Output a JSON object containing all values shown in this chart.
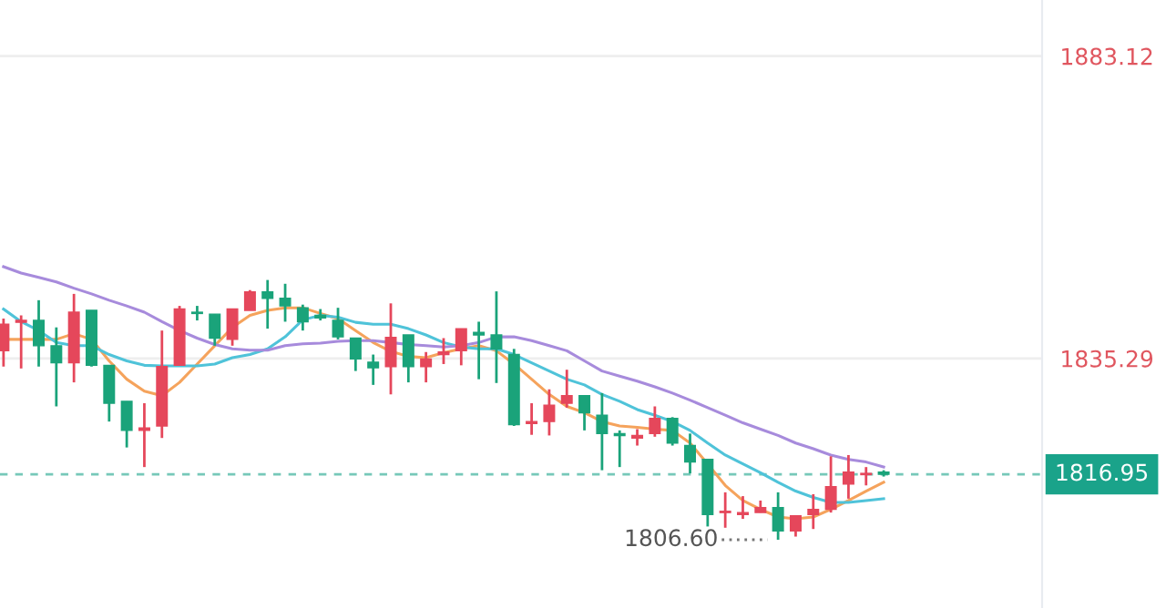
{
  "chart_data": {
    "type": "candlestick",
    "categories": [
      null,
      null,
      null,
      null,
      null,
      null,
      null,
      null,
      null,
      null,
      null,
      null,
      null,
      null,
      null,
      null,
      null,
      null,
      null,
      null,
      null,
      null,
      null,
      null,
      null,
      null,
      null,
      null,
      null,
      null,
      null,
      null,
      null,
      null,
      null,
      null,
      null,
      null,
      null,
      null,
      null,
      null,
      null,
      null,
      null,
      null,
      null,
      null,
      null,
      null,
      null
    ],
    "ohlc": [
      [
        1836.5,
        1841.6,
        1834.0,
        1840.7
      ],
      [
        1841.0,
        1842.1,
        1833.7,
        1841.3
      ],
      [
        1841.3,
        1844.5,
        1834.0,
        1837.3
      ],
      [
        1837.3,
        1840.2,
        1827.7,
        1834.6
      ],
      [
        1834.6,
        1845.5,
        1831.5,
        1842.6
      ],
      [
        1842.9,
        1842.9,
        1834.0,
        1834.2
      ],
      [
        1834.2,
        1834.2,
        1825.3,
        1828.2
      ],
      [
        1828.5,
        1828.5,
        1821.2,
        1823.9
      ],
      [
        1823.9,
        1828.2,
        1818.1,
        1824.3
      ],
      [
        1824.6,
        1839.7,
        1822.7,
        1834.0
      ],
      [
        1834.2,
        1843.6,
        1834.2,
        1843.1
      ],
      [
        1842.6,
        1843.6,
        1841.3,
        1842.4
      ],
      [
        1842.3,
        1842.3,
        1837.3,
        1838.5
      ],
      [
        1838.3,
        1843.1,
        1837.3,
        1843.1
      ],
      [
        1842.9,
        1846.1,
        1842.9,
        1845.8
      ],
      [
        1845.8,
        1847.7,
        1840.0,
        1844.8
      ],
      [
        1844.8,
        1847.1,
        1841.1,
        1843.6
      ],
      [
        1843.3,
        1843.8,
        1839.7,
        1841.1
      ],
      [
        1842.1,
        1843.1,
        1841.3,
        1841.7
      ],
      [
        1841.3,
        1843.3,
        1838.3,
        1838.7
      ],
      [
        1838.5,
        1838.5,
        1833.3,
        1835.2
      ],
      [
        1834.7,
        1835.9,
        1831.1,
        1833.8
      ],
      [
        1834.0,
        1844.0,
        1829.6,
        1838.6
      ],
      [
        1839.0,
        1839.0,
        1831.5,
        1834.0
      ],
      [
        1834.0,
        1836.3,
        1831.5,
        1835.2
      ],
      [
        1835.9,
        1838.5,
        1834.4,
        1836.3
      ],
      [
        1836.5,
        1840.0,
        1834.2,
        1840.0
      ],
      [
        1839.4,
        1841.1,
        1832.0,
        1839.0
      ],
      [
        1839.0,
        1845.9,
        1831.4,
        1836.8
      ],
      [
        1835.9,
        1836.8,
        1824.6,
        1824.8
      ],
      [
        1825.0,
        1828.2,
        1823.2,
        1825.3
      ],
      [
        1825.3,
        1830.4,
        1823.1,
        1827.9
      ],
      [
        1828.2,
        1833.5,
        1827.5,
        1829.4
      ],
      [
        1829.4,
        1829.4,
        1823.9,
        1826.7
      ],
      [
        1826.3,
        1829.8,
        1817.6,
        1823.4
      ],
      [
        1823.4,
        1823.9,
        1818.1,
        1823.1
      ],
      [
        1822.7,
        1824.1,
        1821.5,
        1823.1
      ],
      [
        1823.4,
        1827.7,
        1822.9,
        1825.8
      ],
      [
        1825.8,
        1826.0,
        1821.5,
        1821.9
      ],
      [
        1821.5,
        1823.4,
        1817.1,
        1818.9
      ],
      [
        1819.3,
        1819.3,
        1808.7,
        1810.6
      ],
      [
        1810.9,
        1814.1,
        1808.5,
        1811.1
      ],
      [
        1810.6,
        1813.5,
        1809.9,
        1810.9
      ],
      [
        1810.9,
        1812.8,
        1810.9,
        1811.7
      ],
      [
        1811.7,
        1814.1,
        1806.6,
        1808.0
      ],
      [
        1808.0,
        1810.4,
        1807.1,
        1810.4
      ],
      [
        1810.6,
        1813.8,
        1808.3,
        1811.4
      ],
      [
        1811.4,
        1819.8,
        1810.9,
        1815.0
      ],
      [
        1815.4,
        1820.0,
        1813.1,
        1817.3
      ],
      [
        1816.9,
        1818.1,
        1815.2,
        1817.1
      ],
      [
        1817.3,
        1817.6,
        1816.6,
        1816.95
      ]
    ],
    "series": [
      {
        "type": "line",
        "color": "#f5a35c",
        "values": [
          1838.3,
          1838.3,
          1838.3,
          1838.3,
          1839.2,
          1838.3,
          1834.9,
          1832.0,
          1830.1,
          1829.4,
          1831.5,
          1834.4,
          1837.3,
          1840.2,
          1842.1,
          1842.9,
          1843.3,
          1843.3,
          1842.4,
          1841.6,
          1839.7,
          1837.8,
          1836.4,
          1835.6,
          1835.4,
          1836.2,
          1836.8,
          1837.3,
          1836.5,
          1834.4,
          1832.0,
          1829.6,
          1827.7,
          1826.7,
          1825.3,
          1824.6,
          1824.4,
          1824.1,
          1823.9,
          1821.9,
          1818.6,
          1815.2,
          1812.8,
          1811.4,
          1810.2,
          1809.9,
          1810.2,
          1811.4,
          1812.8,
          1814.3,
          1815.7
        ]
      },
      {
        "type": "line",
        "color": "#4fc3d9",
        "values": [
          1843.1,
          1841.1,
          1839.7,
          1837.8,
          1837.3,
          1837.3,
          1835.9,
          1834.9,
          1834.2,
          1834.1,
          1834.1,
          1834.1,
          1834.4,
          1835.4,
          1835.9,
          1836.8,
          1838.7,
          1841.4,
          1842.1,
          1841.8,
          1841.0,
          1840.7,
          1840.7,
          1840.0,
          1839.0,
          1837.8,
          1837.1,
          1836.8,
          1836.8,
          1835.9,
          1834.6,
          1833.3,
          1832.0,
          1831.1,
          1829.6,
          1828.5,
          1827.2,
          1826.3,
          1825.3,
          1823.9,
          1821.9,
          1820.0,
          1818.6,
          1817.2,
          1815.7,
          1814.3,
          1813.3,
          1812.5,
          1812.5,
          1812.8,
          1813.1
        ]
      },
      {
        "type": "line",
        "color": "#a78bdc",
        "values": [
          1849.8,
          1848.8,
          1848.1,
          1847.4,
          1846.4,
          1845.5,
          1844.5,
          1843.6,
          1842.6,
          1841.1,
          1839.7,
          1838.5,
          1837.5,
          1836.8,
          1836.6,
          1836.6,
          1837.3,
          1837.6,
          1837.7,
          1838.0,
          1838.1,
          1838.1,
          1837.8,
          1837.5,
          1837.3,
          1837.1,
          1837.3,
          1837.8,
          1838.7,
          1838.7,
          1838.1,
          1837.3,
          1836.5,
          1834.9,
          1833.3,
          1832.5,
          1831.7,
          1830.8,
          1829.8,
          1828.7,
          1827.5,
          1826.3,
          1825.1,
          1824.1,
          1823.1,
          1821.9,
          1821.0,
          1820.0,
          1819.3,
          1818.9,
          1818.1
        ]
      }
    ],
    "ylim": [
      1795.8,
      1892.0
    ],
    "yticks": [
      1835.29,
      1883.12
    ],
    "grid": "y",
    "tick_labels": "y",
    "ref_lines": [
      {
        "axis": "y",
        "value": 1816.95,
        "label": "1816.95",
        "color": "#1aa38a",
        "line_style": "dashed"
      }
    ],
    "annotations": [
      "1806.60"
    ]
  }
}
